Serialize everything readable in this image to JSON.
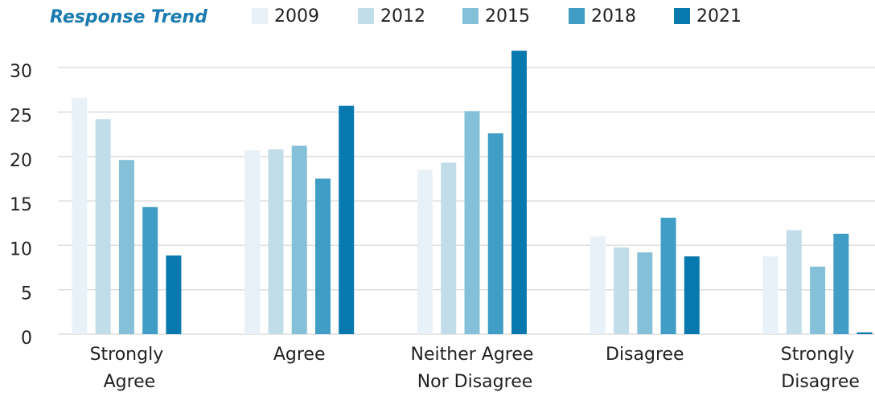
{
  "chart_data": {
    "type": "bar",
    "title": "Response Trend",
    "categories": [
      "Strongly Agree",
      "Agree",
      "Neither Agree Nor Disagree",
      "Disagree",
      "Strongly Disagree"
    ],
    "series": [
      {
        "name": "2009",
        "color": "#e8f1f8",
        "values": [
          26.6,
          20.7,
          18.5,
          11.0,
          8.75
        ]
      },
      {
        "name": "2012",
        "color": "#c1dde9",
        "values": [
          24.2,
          20.8,
          19.3,
          9.75,
          11.7
        ]
      },
      {
        "name": "2015",
        "color": "#84c0d7",
        "values": [
          19.6,
          21.2,
          25.1,
          9.2,
          7.6
        ]
      },
      {
        "name": "2018",
        "color": "#3f9dc6",
        "values": [
          14.3,
          17.5,
          22.6,
          13.1,
          11.3
        ]
      },
      {
        "name": "2021",
        "color": "#0879ae",
        "values": [
          8.85,
          25.7,
          31.9,
          8.75,
          0.2
        ]
      }
    ],
    "ylim": [
      0,
      32
    ],
    "yticks": [
      0,
      5,
      10,
      15,
      20,
      25,
      30
    ],
    "grid": true
  }
}
